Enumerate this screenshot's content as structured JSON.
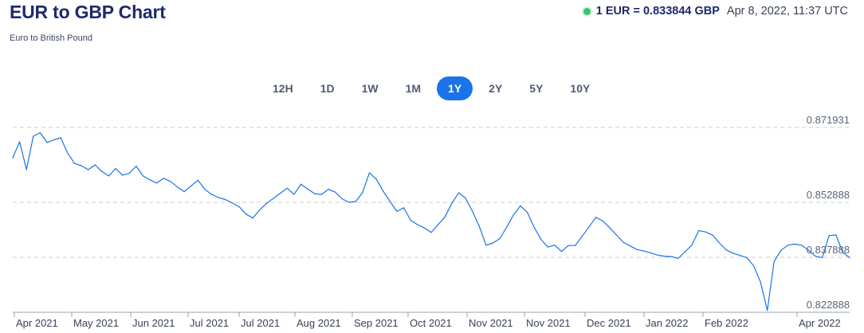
{
  "header": {
    "title": "EUR to GBP Chart",
    "subtitle": "Euro to British Pound",
    "rate_value": "1 EUR = 0.833844 GBP",
    "rate_time": "Apr 8, 2022, 11:37 UTC",
    "status_color": "#3ec46d"
  },
  "tabs": [
    {
      "label": "12H",
      "active": false
    },
    {
      "label": "1D",
      "active": false
    },
    {
      "label": "1W",
      "active": false
    },
    {
      "label": "1M",
      "active": false
    },
    {
      "label": "1Y",
      "active": true
    },
    {
      "label": "2Y",
      "active": false
    },
    {
      "label": "5Y",
      "active": false
    },
    {
      "label": "10Y",
      "active": false
    }
  ],
  "chart_data": {
    "type": "line",
    "title": "EUR to GBP Chart",
    "subtitle": "Euro to British Pound",
    "x_tick_labels": [
      "Apr 2021",
      "May 2021",
      "Jun 2021",
      "Jul 2021",
      "Jul 2021",
      "Aug 2021",
      "Sep 2021",
      "Oct 2021",
      "Nov 2021",
      "Nov 2021",
      "Dec 2021",
      "Jan 2022",
      "Feb 2022",
      "Apr 2022"
    ],
    "y_tick_labels": [
      "0.871931",
      "0.852888",
      "0.837888",
      "0.822888"
    ],
    "y_ticks": [
      0.871931,
      0.852888,
      0.837888,
      0.822888
    ],
    "ylim": [
      0.822888,
      0.871931
    ],
    "x_range_days": [
      0,
      366
    ],
    "grid": true,
    "line_color": "#1a73e8",
    "series": [
      {
        "x": [
          0,
          3,
          6,
          9,
          12,
          15,
          18,
          21,
          24,
          27,
          30,
          33,
          36,
          39,
          42,
          45,
          48,
          51,
          54,
          57,
          60,
          63,
          66,
          69,
          72,
          75,
          78,
          81,
          84,
          87,
          90,
          93,
          96,
          99,
          102,
          105,
          108,
          111,
          114,
          117,
          120,
          123,
          126,
          129,
          132,
          135,
          138,
          141,
          144,
          147,
          150,
          153,
          156,
          159,
          162,
          165,
          168,
          171,
          174,
          177,
          180,
          183,
          186,
          189,
          192,
          195,
          198,
          201,
          204,
          207,
          210,
          213,
          216,
          219,
          222,
          225,
          228,
          231,
          234,
          237,
          240,
          243,
          246,
          249,
          252,
          255,
          258,
          261,
          264,
          267,
          270,
          273,
          276,
          279,
          282,
          285,
          288,
          291,
          294,
          297,
          300,
          303,
          306,
          309,
          312,
          315,
          318,
          321,
          324,
          327,
          330,
          333,
          336,
          339,
          342,
          345,
          348,
          351,
          354,
          357,
          360,
          363,
          366
        ],
        "y": [
          0.8642,
          0.8683,
          0.8612,
          0.8697,
          0.8706,
          0.8681,
          0.8688,
          0.8693,
          0.8654,
          0.8628,
          0.8622,
          0.8612,
          0.8624,
          0.8607,
          0.8596,
          0.8615,
          0.8598,
          0.8603,
          0.8621,
          0.8596,
          0.8586,
          0.8578,
          0.859,
          0.8582,
          0.8568,
          0.8556,
          0.8571,
          0.8585,
          0.8562,
          0.8549,
          0.8541,
          0.8536,
          0.8527,
          0.8517,
          0.8497,
          0.8486,
          0.8508,
          0.8526,
          0.8539,
          0.8552,
          0.8565,
          0.8549,
          0.8575,
          0.8563,
          0.8551,
          0.8549,
          0.8562,
          0.8555,
          0.8538,
          0.8529,
          0.8531,
          0.8554,
          0.8604,
          0.8588,
          0.8557,
          0.8531,
          0.8504,
          0.8514,
          0.848,
          0.8468,
          0.8459,
          0.8447,
          0.8468,
          0.8489,
          0.8526,
          0.8553,
          0.854,
          0.8505,
          0.8464,
          0.8412,
          0.8418,
          0.843,
          0.8461,
          0.8495,
          0.8519,
          0.8502,
          0.8461,
          0.8428,
          0.8407,
          0.8412,
          0.8395,
          0.8411,
          0.8411,
          0.8436,
          0.8462,
          0.8488,
          0.8478,
          0.846,
          0.844,
          0.842,
          0.841,
          0.84,
          0.8396,
          0.8391,
          0.8385,
          0.8382,
          0.8381,
          0.8376,
          0.8394,
          0.8412,
          0.8452,
          0.8448,
          0.844,
          0.8418,
          0.8399,
          0.839,
          0.8384,
          0.8378,
          0.8356,
          0.8312,
          0.8234,
          0.8368,
          0.8398,
          0.8412,
          0.8415,
          0.8412,
          0.8398,
          0.8382,
          0.8378,
          0.8438,
          0.844,
          0.8392,
          0.8378
        ]
      }
    ]
  }
}
